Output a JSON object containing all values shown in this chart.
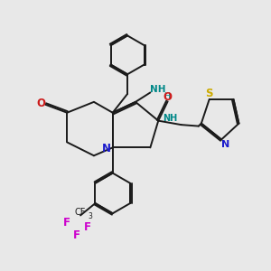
{
  "background_color": "#e8e8e8",
  "figsize": [
    3.0,
    3.0
  ],
  "dpi": 100,
  "atom_colors": {
    "C": "#1a1a1a",
    "N": "#1a1acc",
    "O": "#cc1a1a",
    "S": "#ccaa00",
    "F": "#cc00cc",
    "NH": "#008888"
  },
  "bond_color": "#1a1a1a",
  "bond_lw": 1.4
}
